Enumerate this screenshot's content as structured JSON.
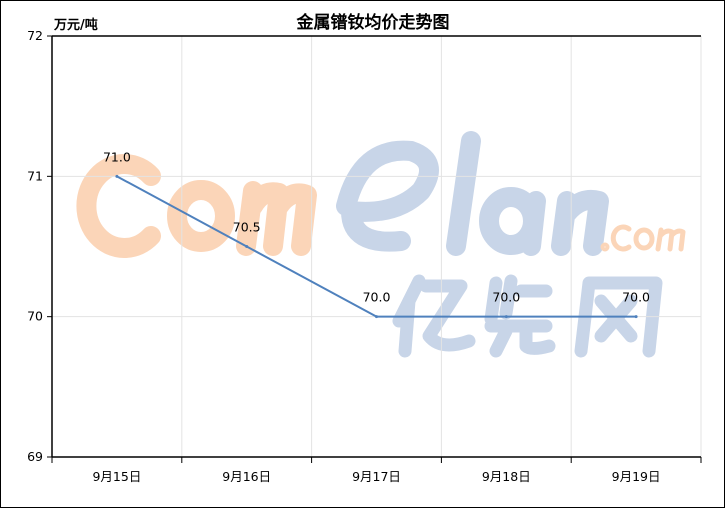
{
  "chart_data": {
    "type": "line",
    "title": "金属镨钕均价走势图",
    "ylabel": "万元/吨",
    "xlabel": "",
    "categories": [
      "9月15日",
      "9月16日",
      "9月17日",
      "9月18日",
      "9月19日"
    ],
    "values": [
      71.0,
      70.5,
      70.0,
      70.0,
      70.0
    ],
    "data_labels": [
      "71.0",
      "70.5",
      "70.0",
      "70.0",
      "70.0"
    ],
    "ylim": [
      69,
      72
    ],
    "yticks": [
      "69",
      "70",
      "71",
      "72"
    ],
    "grid": true,
    "legend": "none",
    "line_color": "#4f81bd"
  },
  "watermark": {
    "text": "Comelan.com 亿览网",
    "colors": {
      "com": "#fbd7bc",
      "lan": "#c9d6e8"
    }
  }
}
